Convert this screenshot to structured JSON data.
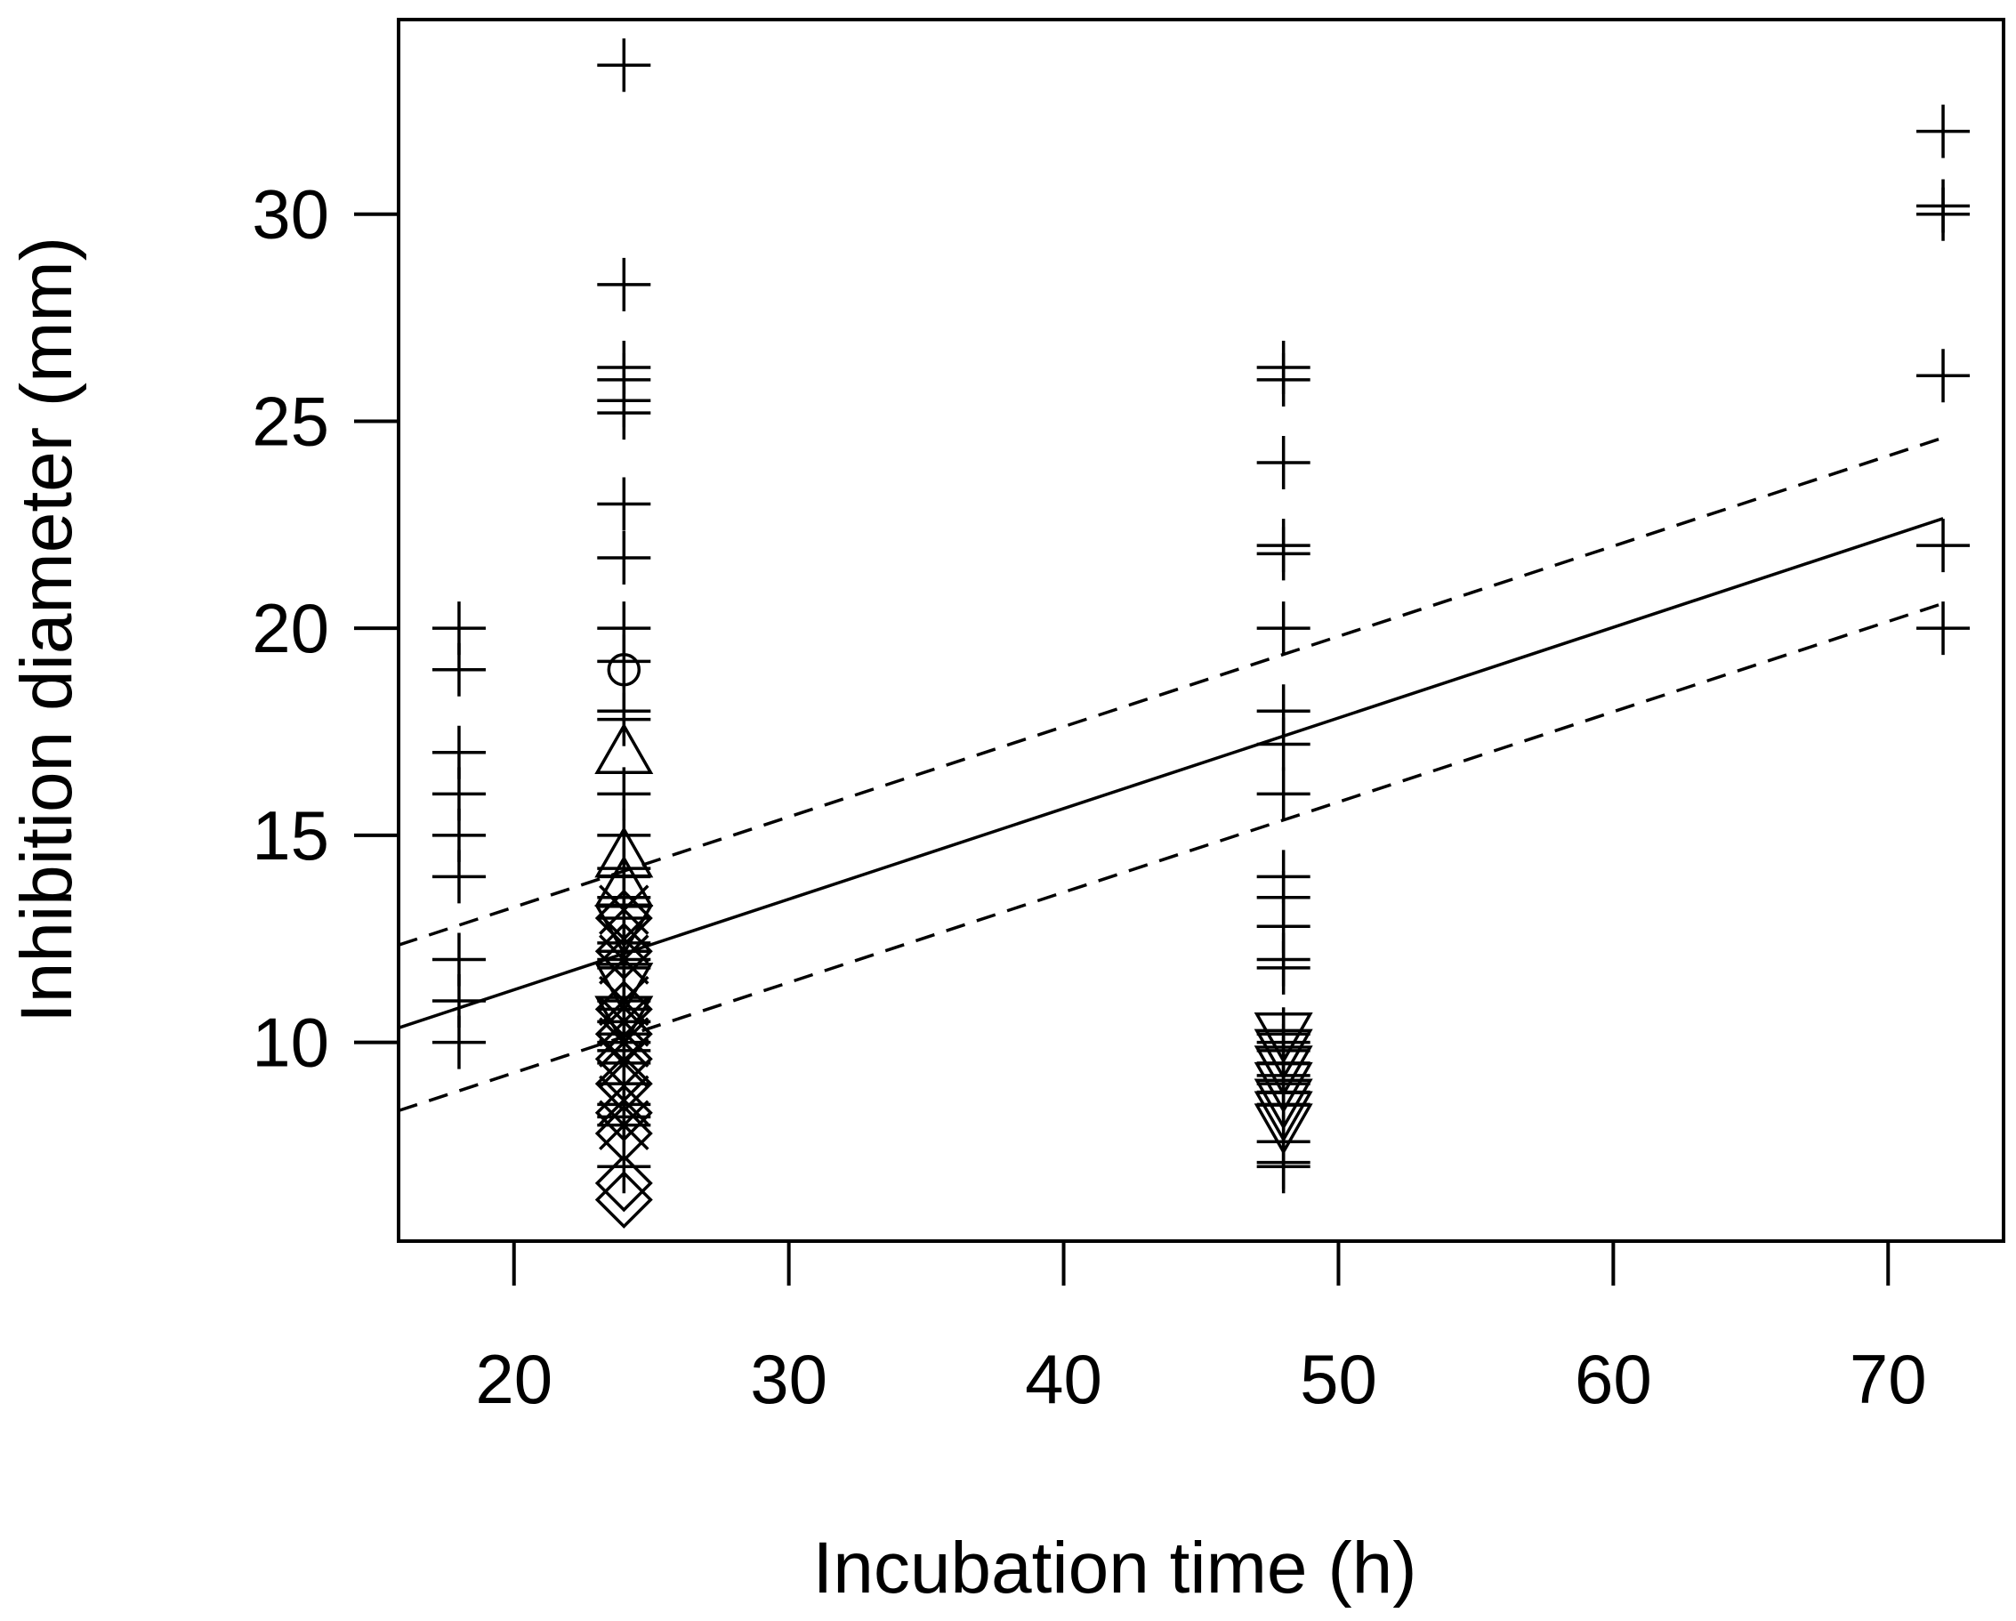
{
  "chart_data": {
    "type": "scatter",
    "title": "",
    "xlabel": "Incubation time (h)",
    "ylabel": "Inhibition diameter (mm)",
    "xlim": [
      15.8,
      74.2
    ],
    "ylim": [
      5.2,
      34.7
    ],
    "xticks": [
      20,
      30,
      40,
      50,
      60,
      70
    ],
    "yticks": [
      10,
      15,
      20,
      25,
      30
    ],
    "grid": false,
    "legend": "none",
    "colors": {
      "ink": "#000000",
      "background": "#ffffff"
    },
    "series": [
      {
        "name": "plus",
        "marker": "plus",
        "points": [
          [
            18,
            20
          ],
          [
            18,
            19
          ],
          [
            18,
            17
          ],
          [
            18,
            16
          ],
          [
            18,
            15
          ],
          [
            18,
            14
          ],
          [
            18,
            12
          ],
          [
            18,
            11
          ],
          [
            18,
            10
          ],
          [
            24,
            33.6
          ],
          [
            24,
            28.3
          ],
          [
            24,
            26.3
          ],
          [
            24,
            26
          ],
          [
            24,
            25.5
          ],
          [
            24,
            25.2
          ],
          [
            24,
            23
          ],
          [
            24,
            21.7
          ],
          [
            24,
            20
          ],
          [
            24,
            19.2
          ],
          [
            24,
            18
          ],
          [
            24,
            17.8
          ],
          [
            24,
            16
          ],
          [
            24,
            15
          ],
          [
            24,
            14.2
          ],
          [
            24,
            14
          ],
          [
            24,
            13.5
          ],
          [
            24,
            13
          ],
          [
            24,
            12.4
          ],
          [
            24,
            12.2
          ],
          [
            24,
            12
          ],
          [
            24,
            11.8
          ],
          [
            24,
            11
          ],
          [
            24,
            10.8
          ],
          [
            24,
            10.5
          ],
          [
            24,
            10.2
          ],
          [
            24,
            10
          ],
          [
            24,
            9.8
          ],
          [
            24,
            9.5
          ],
          [
            24,
            9
          ],
          [
            24,
            8.5
          ],
          [
            24,
            8.2
          ],
          [
            24,
            8
          ],
          [
            24,
            7
          ],
          [
            48,
            26.3
          ],
          [
            48,
            26
          ],
          [
            48,
            24
          ],
          [
            48,
            22
          ],
          [
            48,
            21.8
          ],
          [
            48,
            20
          ],
          [
            48,
            18
          ],
          [
            48,
            17.2
          ],
          [
            48,
            16
          ],
          [
            48,
            14
          ],
          [
            48,
            13.5
          ],
          [
            48,
            12.8
          ],
          [
            48,
            12
          ],
          [
            48,
            11.8
          ],
          [
            48,
            10.2
          ],
          [
            48,
            10
          ],
          [
            48,
            9.8
          ],
          [
            48,
            9.5
          ],
          [
            48,
            9.2
          ],
          [
            48,
            9
          ],
          [
            48,
            8.8
          ],
          [
            48,
            8.5
          ],
          [
            48,
            7.6
          ],
          [
            48,
            7.1
          ],
          [
            48,
            7
          ],
          [
            72,
            32
          ],
          [
            72,
            30.2
          ],
          [
            72,
            30
          ],
          [
            72,
            26.1
          ],
          [
            72,
            22
          ],
          [
            72,
            20
          ]
        ]
      },
      {
        "name": "circle",
        "marker": "circle",
        "points": [
          [
            24,
            19
          ]
        ]
      },
      {
        "name": "triangle",
        "marker": "triangle",
        "points": [
          [
            24,
            17
          ],
          [
            24,
            14.5
          ],
          [
            24,
            13.8
          ]
        ]
      },
      {
        "name": "x",
        "marker": "x",
        "points": [
          [
            24,
            13.2
          ],
          [
            24,
            12.5
          ],
          [
            24,
            12
          ],
          [
            24,
            11
          ],
          [
            24,
            10.5
          ],
          [
            24,
            10
          ],
          [
            24,
            9.5
          ],
          [
            24,
            8.6
          ],
          [
            24,
            8
          ]
        ]
      },
      {
        "name": "diamond",
        "marker": "diamond",
        "points": [
          [
            24,
            13
          ],
          [
            24,
            12.2
          ],
          [
            24,
            10.8
          ],
          [
            24,
            10.2
          ],
          [
            24,
            9.6
          ],
          [
            24,
            9
          ],
          [
            24,
            8.3
          ],
          [
            24,
            7.8
          ],
          [
            24,
            6.6
          ],
          [
            24,
            6.2
          ]
        ]
      },
      {
        "name": "down-triangle",
        "marker": "down-triangle",
        "points": [
          [
            24,
            12.8
          ],
          [
            24,
            11.4
          ],
          [
            24,
            10.6
          ],
          [
            48,
            10.2
          ],
          [
            48,
            9.8
          ],
          [
            48,
            9.4
          ],
          [
            48,
            9
          ],
          [
            48,
            8.6
          ],
          [
            48,
            8.3
          ],
          [
            48,
            8
          ]
        ]
      }
    ],
    "lines": [
      {
        "name": "fit",
        "style": "solid",
        "points": [
          [
            15.8,
            10.35
          ],
          [
            72,
            22.65
          ]
        ]
      },
      {
        "name": "upper-bound",
        "style": "dashed",
        "points": [
          [
            15.8,
            12.35
          ],
          [
            72,
            24.6
          ]
        ]
      },
      {
        "name": "lower-bound",
        "style": "dashed",
        "points": [
          [
            15.8,
            8.35
          ],
          [
            72,
            20.6
          ]
        ]
      }
    ]
  }
}
